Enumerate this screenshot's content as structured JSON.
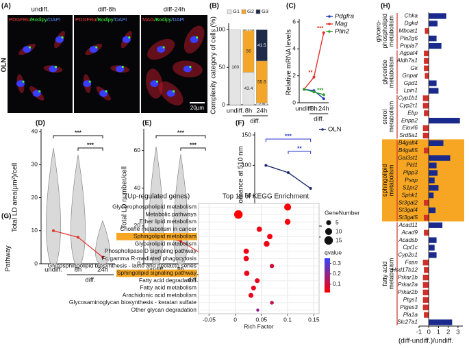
{
  "images": {
    "panel": "(A)",
    "row_label": "OLN",
    "scale_bar": "20µm",
    "columns": [
      {
        "title": "undiff.",
        "stain": [
          {
            "text": "PDGFRα",
            "color": "#ff3b3b"
          },
          {
            "text": "/Bodipy",
            "color": "#3dff3d"
          },
          {
            "text": "/DAPI",
            "color": "#5b8cff"
          }
        ]
      },
      {
        "title": "diff-8h",
        "stain": [
          {
            "text": "PDGFRα",
            "color": "#ff3b3b"
          },
          {
            "text": "/Bodipy",
            "color": "#3dff3d"
          },
          {
            "text": "/DAPI",
            "color": "#5b8cff"
          }
        ]
      },
      {
        "title": "diff-24h",
        "stain": [
          {
            "text": "MAG",
            "color": "#ff3b3b"
          },
          {
            "text": "/Bodipy",
            "color": "#3dff3d"
          },
          {
            "text": "/DAPI",
            "color": "#5b8cff"
          }
        ]
      }
    ]
  },
  "chart_data": [
    {
      "type": "stacked_bar",
      "panel": "(B)",
      "ylabel": "Complexity category of cells (%)",
      "categories": [
        "undiff.",
        "8h",
        "24h"
      ],
      "group_label": "diff.",
      "series": [
        {
          "name": "G1",
          "color": "#e4e4e4",
          "values": [
            100,
            43.4,
            2.6
          ]
        },
        {
          "name": "G2",
          "color": "#f4a62a",
          "values": [
            0,
            56,
            55.9
          ]
        },
        {
          "name": "G3",
          "color": "#1e2a47",
          "values": [
            0,
            0.6,
            41.5
          ]
        }
      ],
      "ylim": [
        0,
        105
      ],
      "yticks": [
        0,
        50,
        100
      ]
    },
    {
      "type": "line",
      "panel": "(C)",
      "ylabel": "Relative mRNA levels",
      "categories": [
        "undiff.",
        "8h",
        "24h"
      ],
      "group_label": "diff.",
      "legend": "right",
      "series": [
        {
          "name": "Pdgfra",
          "color": "#1f3bbf",
          "values": [
            1,
            0.9,
            0.3
          ]
        },
        {
          "name": "Mag",
          "color": "#e0302a",
          "values": [
            1,
            1.9,
            5.2
          ]
        },
        {
          "name": "Plin2",
          "color": "#2ca02c",
          "values": [
            1,
            0.8,
            0.6
          ]
        }
      ],
      "ylim": [
        0,
        6
      ],
      "yticks": [
        0,
        2,
        4,
        6
      ],
      "annotations": [
        {
          "text": "**",
          "series": 1,
          "point": 1,
          "color": "#e0302a"
        },
        {
          "text": "***",
          "series": 1,
          "point": 2,
          "color": "#e0302a"
        },
        {
          "text": "***",
          "series": 2,
          "point": 2,
          "color": "#2ca02c"
        }
      ]
    },
    {
      "type": "violin",
      "panel": "(D)",
      "ylabel": "Total LD area(μm²)/cell",
      "categories": [
        "undiff.",
        "8h",
        "24h"
      ],
      "group_label": "diff.",
      "values": [
        10,
        8,
        2
      ],
      "max": [
        35,
        33,
        13
      ],
      "median_color": "#e0302a",
      "color": "#d9d9d9",
      "ylim": [
        0,
        40
      ],
      "yticks": [
        0,
        10,
        20,
        30,
        40
      ],
      "brackets": [
        {
          "from": 0,
          "to": 2,
          "text": "***"
        },
        {
          "from": 1,
          "to": 2,
          "text": "***"
        }
      ],
      "bracket_color": "#111"
    },
    {
      "type": "violin",
      "panel": "(E)",
      "ylabel": "Total LD number/cell",
      "categories": [
        "undiff.",
        "8h",
        "24h"
      ],
      "group_label": "diff.",
      "values": [
        15,
        12,
        4
      ],
      "max": [
        62,
        58,
        30
      ],
      "median_color": "#e0302a",
      "color": "#d9d9d9",
      "ylim": [
        0,
        70
      ],
      "yticks": [
        0,
        20,
        40,
        60
      ],
      "brackets": [
        {
          "from": 0,
          "to": 2,
          "text": "***"
        },
        {
          "from": 1,
          "to": 2,
          "text": "***"
        }
      ],
      "bracket_color": "#111"
    },
    {
      "type": "line",
      "panel": "(F)",
      "ylabel": "Absorbance at 510 nm",
      "categories": [
        "undiff.",
        "8h",
        "24h"
      ],
      "group_label": "diff.",
      "legend": "right",
      "series": [
        {
          "name": "OLN",
          "color": "#1e2a6e",
          "values": [
            100,
            88,
            62
          ]
        }
      ],
      "ylim": [
        0,
        150
      ],
      "yticks": [
        0,
        50,
        100,
        150
      ],
      "brackets": [
        {
          "from": 0,
          "to": 2,
          "text": "***"
        },
        {
          "from": 1,
          "to": 2,
          "text": "**"
        }
      ],
      "bracket_color": "#2233cc"
    },
    {
      "type": "bubble",
      "panel": "(G)",
      "title": "Top 15 of KEGG Enrichment",
      "subtitle": "(Up-regulated genes)",
      "ylabel": "Pathway",
      "xlabel": "Rich Factor",
      "categories": [
        "Glycerophospholipid metabolism",
        "Metabolic pathways",
        "Ether lipid metabolism",
        "Choline metabolism in cancer",
        "Sphingolipid metabolism",
        "Glycerolipid metabolism",
        "Phospholipase D signaling pathway",
        "Fc gamma R-mediated phagocytosis",
        "Glycosphingolipid biosynthesis - lacto and neolacto series",
        "Sphingolipid signaling pathway",
        "Fatty acid degradation",
        "Fatty acid metabolism",
        "Arachidonic acid metabolism",
        "Glycosaminoglycan biosynthesis - keratan sulfate",
        "Other glycan degradation"
      ],
      "values": [
        0.1,
        0.006,
        0.1,
        0.046,
        0.066,
        0.06,
        0.021,
        0.021,
        0.07,
        0.022,
        0.042,
        0.035,
        0.03,
        0.07,
        0.043
      ],
      "sizes": [
        10,
        15,
        7,
        6,
        6,
        7,
        6,
        6,
        4,
        6,
        5,
        5,
        5,
        3,
        2
      ],
      "qvalues": [
        0.03,
        0.02,
        0.04,
        0.05,
        0.04,
        0.05,
        0.05,
        0.05,
        0.1,
        0.05,
        0.06,
        0.06,
        0.06,
        0.12,
        0.2
      ],
      "highlight": [
        4,
        9
      ],
      "highlight_color": "#f6a623",
      "xlim": [
        -0.07,
        0.16
      ],
      "xticks": [
        -0.05,
        0,
        0.05,
        0.1,
        0.15
      ],
      "grid": true,
      "size_legend": {
        "title": "GeneNumber",
        "values": [
          5,
          10,
          15
        ]
      },
      "color_legend": {
        "title": "qvalue",
        "clim": [
          0.02,
          0.35
        ],
        "colors": [
          "#ff0000",
          "#3344ff"
        ],
        "ticks": [
          0.1,
          0.2,
          0.3
        ]
      }
    },
    {
      "type": "hbar",
      "panel": "(H)",
      "xlabel": "(diff-undiff.)/undiff.",
      "pos_color": "#1a2a8c",
      "neg_color": "#d0302a",
      "categories": [
        "Chka",
        "Dgkd",
        "Mboat1",
        "Pla2g6",
        "Pnpla7",
        "Agpat4",
        "Aldh7a1",
        "Gk",
        "Gnpat",
        "Gpd1",
        "Lpin1",
        "Cyp1b1",
        "Cyp2r1",
        "Ebp",
        "Enpp2",
        "Elovl6",
        "Srd5a1",
        "B4galt4",
        "B4galt5",
        "Gal3st1",
        "Pld1",
        "Plpp3",
        "Psap",
        "S1pr2",
        "Sphk1",
        "St3gal2",
        "St3gal4",
        "St3gal5",
        "Acad11",
        "Acad9",
        "Acadsb",
        "Cpt1c",
        "Cyp2u1",
        "Fasn",
        "Hsd17b12",
        "Prkar1b",
        "Prkar2a",
        "Prkar2b",
        "Ptgs1",
        "Ptges3",
        "Pla1a",
        "Slc27a1"
      ],
      "values": [
        1.8,
        0.9,
        -0.4,
        0.8,
        1.3,
        -0.5,
        -0.5,
        -0.5,
        -0.4,
        0.8,
        1.0,
        -0.6,
        -0.6,
        -0.5,
        3.2,
        -0.6,
        -0.6,
        1.5,
        -0.5,
        2.2,
        0.8,
        0.9,
        0.6,
        1.0,
        0.5,
        -0.5,
        0.7,
        -0.5,
        1.4,
        -0.5,
        0.8,
        0.6,
        0.8,
        -0.6,
        -0.5,
        -0.6,
        -0.6,
        -0.6,
        -0.6,
        -0.6,
        -0.5,
        2.4
      ],
      "xlim": [
        -1,
        3.5
      ],
      "xticks": [
        -1,
        0,
        1,
        2,
        3
      ],
      "groups": [
        {
          "label": [
            "glycero-",
            "phospholipid",
            "metabolism"
          ],
          "start": 0,
          "end": 4
        },
        {
          "label": [
            "glyceride",
            "metabolism"
          ],
          "start": 5,
          "end": 10
        },
        {
          "label": [
            "sterol",
            "metabolism"
          ],
          "start": 11,
          "end": 16
        },
        {
          "label": [
            "sphingolipid",
            "metabolism"
          ],
          "start": 17,
          "end": 27,
          "highlight": true
        },
        {
          "label": [
            "fatty acid",
            "metabolism"
          ],
          "start": 28,
          "end": 41
        }
      ],
      "group_color": "#d0302a",
      "highlight_color": "#f6a623"
    }
  ]
}
